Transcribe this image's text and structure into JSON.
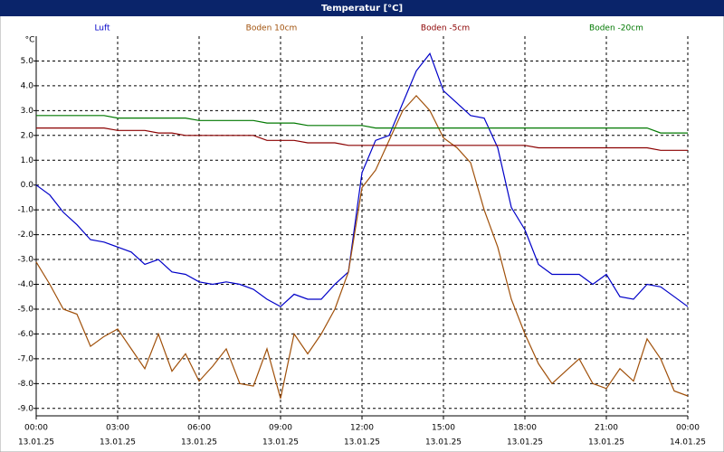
{
  "chart_data": {
    "type": "line",
    "title": "Temperatur [°C]",
    "y_label": "°C",
    "grid": true,
    "x": [
      0,
      0.5,
      1,
      1.5,
      2,
      2.5,
      3,
      3.5,
      4,
      4.5,
      5,
      5.5,
      6,
      6.5,
      7,
      7.5,
      8,
      8.5,
      9,
      9.5,
      10,
      10.5,
      11,
      11.5,
      12,
      12.5,
      13,
      13.5,
      14,
      14.5,
      15,
      15.5,
      16,
      16.5,
      17,
      17.5,
      18,
      18.5,
      19,
      19.5,
      20,
      20.5,
      21,
      21.5,
      22,
      22.5,
      23,
      23.5,
      24
    ],
    "xlim": [
      0,
      24
    ],
    "xticks": [
      {
        "value": 0,
        "label": "00:00"
      },
      {
        "value": 3,
        "label": "03:00"
      },
      {
        "value": 6,
        "label": "06:00"
      },
      {
        "value": 9,
        "label": "09:00"
      },
      {
        "value": 12,
        "label": "12:00"
      },
      {
        "value": 15,
        "label": "15:00"
      },
      {
        "value": 18,
        "label": "18:00"
      },
      {
        "value": 21,
        "label": "21:00"
      },
      {
        "value": 24,
        "label": "00:00"
      }
    ],
    "xtick_dates": [
      "13.01.25",
      "13.01.25",
      "13.01.25",
      "13.01.25",
      "13.01.25",
      "13.01.25",
      "13.01.25",
      "13.01.25",
      "14.01.25"
    ],
    "ylim": [
      -9.3,
      6.0
    ],
    "yticks": [
      {
        "value": 5,
        "label": "5.0"
      },
      {
        "value": 4,
        "label": "4.0"
      },
      {
        "value": 3,
        "label": "3.0"
      },
      {
        "value": 2,
        "label": "2.0"
      },
      {
        "value": 1,
        "label": "1.0"
      },
      {
        "value": 0,
        "label": "0.0"
      },
      {
        "value": -1,
        "label": "-1.0"
      },
      {
        "value": -2,
        "label": "-2.0"
      },
      {
        "value": -3,
        "label": "-3.0"
      },
      {
        "value": -4,
        "label": "-4.0"
      },
      {
        "value": -5,
        "label": "-5.0"
      },
      {
        "value": -6,
        "label": "-6.0"
      },
      {
        "value": -7,
        "label": "-7.0"
      },
      {
        "value": -8,
        "label": "-8.0"
      },
      {
        "value": -9,
        "label": "-9.0"
      }
    ],
    "series": [
      {
        "name": "Luft",
        "color": "#0000c8",
        "values": [
          0.0,
          -0.4,
          -1.1,
          -1.6,
          -2.2,
          -2.3,
          -2.5,
          -2.7,
          -3.2,
          -3.0,
          -3.5,
          -3.6,
          -3.9,
          -4.0,
          -3.9,
          -4.0,
          -4.2,
          -4.6,
          -4.9,
          -4.4,
          -4.6,
          -4.6,
          -4.0,
          -3.5,
          0.5,
          1.8,
          2.0,
          3.3,
          4.6,
          5.3,
          3.8,
          3.3,
          2.8,
          2.7,
          1.5,
          -0.9,
          -1.8,
          -3.2,
          -3.6,
          -3.6,
          -3.6,
          -4.0,
          -3.6,
          -4.5,
          -4.6,
          -4.0,
          -4.1,
          -4.5,
          -4.9
        ]
      },
      {
        "name": "Boden 10cm",
        "color": "#a0500a",
        "values": [
          -3.1,
          -4.0,
          -5.0,
          -5.2,
          -6.5,
          -6.1,
          -5.8,
          -6.6,
          -7.4,
          -6.0,
          -7.5,
          -6.8,
          -7.9,
          -7.3,
          -6.6,
          -8.0,
          -8.1,
          -6.6,
          -8.6,
          -6.0,
          -6.8,
          -6.0,
          -5.0,
          -3.5,
          -0.1,
          0.6,
          1.8,
          3.0,
          3.6,
          3.0,
          1.9,
          1.5,
          0.9,
          -1.0,
          -2.5,
          -4.6,
          -6.0,
          -7.2,
          -8.0,
          -7.5,
          -7.0,
          -8.0,
          -8.2,
          -7.4,
          -7.9,
          -6.2,
          -7.0,
          -8.3,
          -8.5
        ]
      },
      {
        "name": "Boden -5cm",
        "color": "#8b0000",
        "values": [
          2.3,
          2.3,
          2.3,
          2.3,
          2.3,
          2.3,
          2.2,
          2.2,
          2.2,
          2.1,
          2.1,
          2.0,
          2.0,
          2.0,
          2.0,
          2.0,
          2.0,
          1.8,
          1.8,
          1.8,
          1.7,
          1.7,
          1.7,
          1.6,
          1.6,
          1.6,
          1.6,
          1.6,
          1.6,
          1.6,
          1.6,
          1.6,
          1.6,
          1.6,
          1.6,
          1.6,
          1.6,
          1.5,
          1.5,
          1.5,
          1.5,
          1.5,
          1.5,
          1.5,
          1.5,
          1.5,
          1.4,
          1.4,
          1.4
        ]
      },
      {
        "name": "Boden -20cm",
        "color": "#007800",
        "values": [
          2.8,
          2.8,
          2.8,
          2.8,
          2.8,
          2.8,
          2.7,
          2.7,
          2.7,
          2.7,
          2.7,
          2.7,
          2.6,
          2.6,
          2.6,
          2.6,
          2.6,
          2.5,
          2.5,
          2.5,
          2.4,
          2.4,
          2.4,
          2.4,
          2.4,
          2.3,
          2.3,
          2.3,
          2.3,
          2.3,
          2.3,
          2.3,
          2.3,
          2.3,
          2.3,
          2.3,
          2.3,
          2.3,
          2.3,
          2.3,
          2.3,
          2.3,
          2.3,
          2.3,
          2.3,
          2.3,
          2.1,
          2.1,
          2.1
        ]
      }
    ]
  }
}
